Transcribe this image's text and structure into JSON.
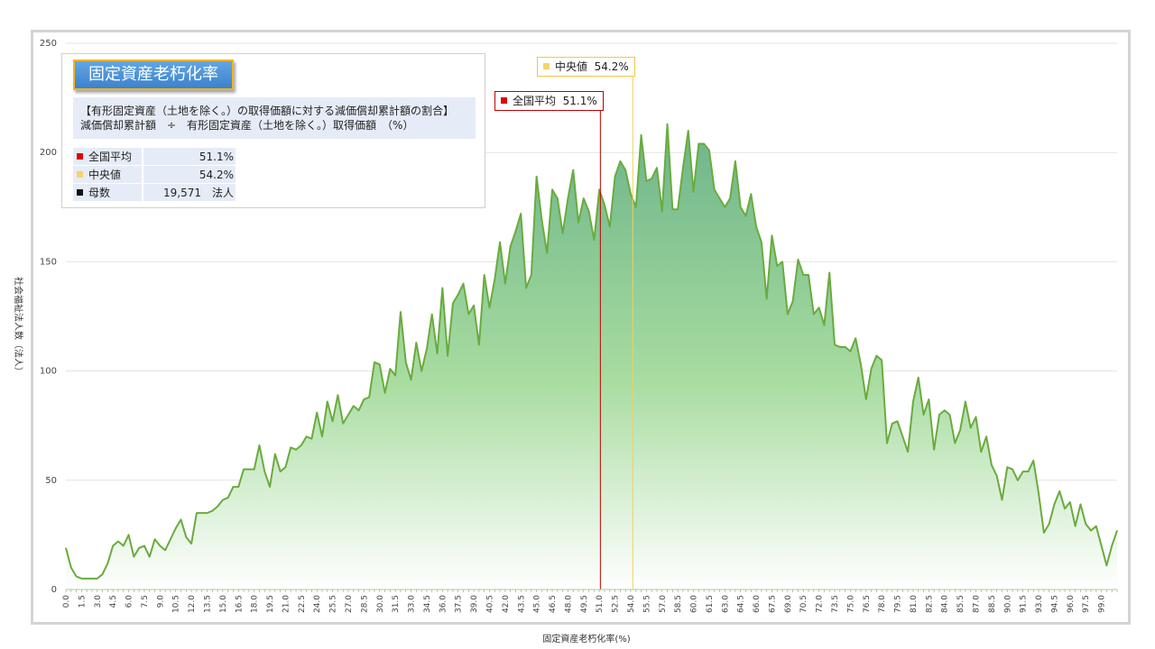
{
  "chart_data": {
    "type": "area",
    "xlabel": "固定資産老朽化率(%)",
    "ylabel": "社会福祉法人数（法人）",
    "ylim": [
      0,
      250
    ],
    "yticks": [
      0,
      50,
      100,
      150,
      200,
      250
    ],
    "x_start": 0.0,
    "x_step": 0.5,
    "x_tick_every": 1.5,
    "x_tick_max": 99.0,
    "grid": true,
    "values": [
      19,
      10,
      6,
      5,
      5,
      5,
      5,
      7,
      12,
      20,
      22,
      20,
      25,
      15,
      19,
      20,
      15,
      23,
      20,
      18,
      23,
      28,
      32,
      24,
      21,
      35,
      35,
      35,
      36,
      38,
      41,
      42,
      47,
      47,
      55,
      55,
      55,
      66,
      54,
      47,
      62,
      54,
      56,
      65,
      64,
      66,
      70,
      69,
      81,
      70,
      86,
      77,
      89,
      76,
      80,
      84,
      82,
      87,
      88,
      104,
      103,
      90,
      101,
      98,
      127,
      104,
      96,
      113,
      100,
      110,
      126,
      108,
      138,
      107,
      131,
      135,
      140,
      126,
      130,
      112,
      144,
      129,
      142,
      159,
      140,
      157,
      164,
      172,
      138,
      144,
      189,
      169,
      154,
      183,
      179,
      163,
      179,
      192,
      168,
      179,
      173,
      160,
      183,
      176,
      166,
      189,
      196,
      192,
      181,
      175,
      208,
      187,
      188,
      193,
      173,
      213,
      174,
      174,
      193,
      210,
      182,
      204,
      204,
      201,
      183,
      179,
      175,
      179,
      196,
      175,
      171,
      181,
      166,
      159,
      133,
      162,
      148,
      150,
      126,
      132,
      151,
      144,
      144,
      126,
      129,
      121,
      145,
      112,
      111,
      111,
      109,
      115,
      103,
      87,
      101,
      107,
      105,
      67,
      76,
      77,
      70,
      63,
      86,
      97,
      80,
      87,
      64,
      80,
      82,
      80,
      67,
      73,
      86,
      74,
      79,
      63,
      70,
      57,
      52,
      41,
      56,
      55,
      50,
      54,
      54,
      59,
      44,
      26,
      30,
      39,
      45,
      37,
      40,
      29,
      39,
      30,
      27,
      29,
      20,
      11,
      20,
      27
    ],
    "mean": 51.1,
    "median": 54.2,
    "count": "19,571",
    "fill_top_color": "#6db48a",
    "fill_bottom_color": "#ffffff",
    "line_color": "#6aab3e",
    "mean_color": "#c00000",
    "median_color": "#f5cf5c"
  },
  "legend": {
    "title": "固定資産老朽化率",
    "desc_line1": "【有形固定資産（土地を除く。）の取得価額に対する減価償却累計額の割合】",
    "desc_line2": "減価償却累計額　÷　有形固定資産（土地を除く。）取得価額　（%）",
    "rows": [
      {
        "label": "全国平均",
        "value": "51.1%",
        "color": "#e00000"
      },
      {
        "label": "中央値",
        "value": "54.2%",
        "color": "#f7d36b"
      },
      {
        "label": "母数",
        "value": "19,571　法人",
        "color": "#111111"
      }
    ]
  },
  "markers": {
    "mean_label": "全国平均",
    "mean_value": "51.1%",
    "median_label": "中央値",
    "median_value": "54.2%"
  }
}
